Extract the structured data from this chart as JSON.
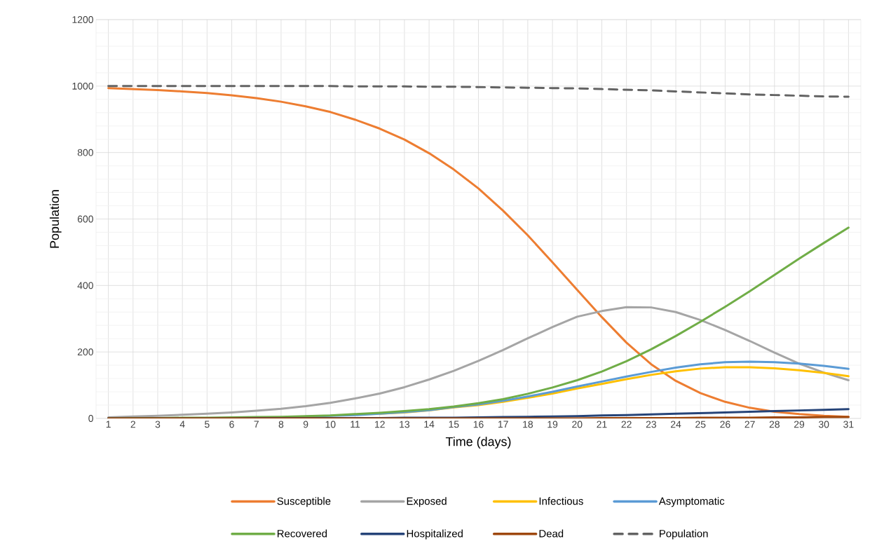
{
  "chart_data": {
    "type": "line",
    "xlabel": "Time (days)",
    "ylabel": "Population",
    "categories": [
      "1",
      "2",
      "3",
      "4",
      "5",
      "6",
      "7",
      "8",
      "9",
      "10",
      "11",
      "12",
      "13",
      "14",
      "15",
      "16",
      "17",
      "18",
      "19",
      "20",
      "21",
      "22",
      "23",
      "24",
      "25",
      "26",
      "27",
      "28",
      "29",
      "30",
      "31"
    ],
    "series": [
      {
        "name": "Susceptible",
        "color": "#ed7d31",
        "values": [
          994,
          991,
          988,
          984,
          979,
          972,
          964,
          953,
          939,
          922,
          899,
          872,
          839,
          798,
          749,
          692,
          625,
          551,
          470,
          387,
          305,
          228,
          163,
          113,
          76,
          50,
          32,
          20,
          13,
          8,
          5
        ]
      },
      {
        "name": "Exposed",
        "color": "#a5a5a5",
        "values": [
          3,
          6,
          8,
          11,
          14,
          18,
          23,
          29,
          37,
          47,
          60,
          75,
          94,
          117,
          143,
          173,
          206,
          241,
          275,
          306,
          323,
          335,
          334,
          320,
          296,
          266,
          233,
          198,
          165,
          138,
          115
        ]
      },
      {
        "name": "Infectious",
        "color": "#ffc000",
        "values": [
          null,
          null,
          null,
          null,
          null,
          null,
          null,
          null,
          null,
          null,
          null,
          14,
          18,
          24,
          33,
          40,
          50,
          62,
          75,
          90,
          104,
          118,
          131,
          142,
          150,
          154,
          154,
          151,
          145,
          137,
          127
        ]
      },
      {
        "name": "Asymptomatic",
        "color": "#5b9bd5",
        "values": [
          null,
          null,
          null,
          null,
          null,
          null,
          null,
          null,
          6,
          8,
          10,
          14,
          19,
          25,
          34,
          42,
          53,
          66,
          80,
          96,
          111,
          126,
          140,
          153,
          163,
          169,
          171,
          169,
          165,
          158,
          149
        ]
      },
      {
        "name": "Recovered",
        "color": "#70ad47",
        "values": [
          0,
          1,
          1,
          2,
          2,
          3,
          4,
          5,
          7,
          9,
          13,
          17,
          22,
          28,
          36,
          46,
          58,
          74,
          93,
          115,
          141,
          172,
          208,
          248,
          291,
          336,
          383,
          432,
          481,
          528,
          574
        ]
      },
      {
        "name": "Hospitalized",
        "color": "#264478",
        "values": [
          0,
          0,
          0,
          0,
          0,
          0,
          1,
          1,
          1,
          1,
          1,
          1,
          2,
          2,
          2,
          3,
          4,
          5,
          6,
          7,
          9,
          10,
          12,
          14,
          16,
          18,
          20,
          22,
          24,
          26,
          28
        ]
      },
      {
        "name": "Dead",
        "color": "#9e480e",
        "values": [
          0,
          0,
          0,
          0,
          0,
          0,
          0,
          0,
          0,
          0,
          0,
          0,
          0,
          0,
          0,
          0,
          0,
          0,
          0,
          0,
          1,
          1,
          1,
          1,
          2,
          2,
          2,
          3,
          3,
          4,
          4
        ]
      },
      {
        "name": "Population",
        "color": "#636363",
        "line_style": "dashed",
        "values": [
          1000,
          1000,
          1000,
          1000,
          1000,
          1000,
          1000,
          1000,
          1000,
          1000,
          999,
          999,
          999,
          998,
          998,
          997,
          996,
          995,
          994,
          993,
          991,
          989,
          987,
          984,
          981,
          978,
          975,
          973,
          971,
          969,
          968
        ]
      }
    ],
    "ylim": [
      0,
      1200
    ],
    "yticks": [
      0,
      200,
      400,
      600,
      800,
      1000,
      1200
    ],
    "grid": true,
    "legend": "bottom"
  }
}
